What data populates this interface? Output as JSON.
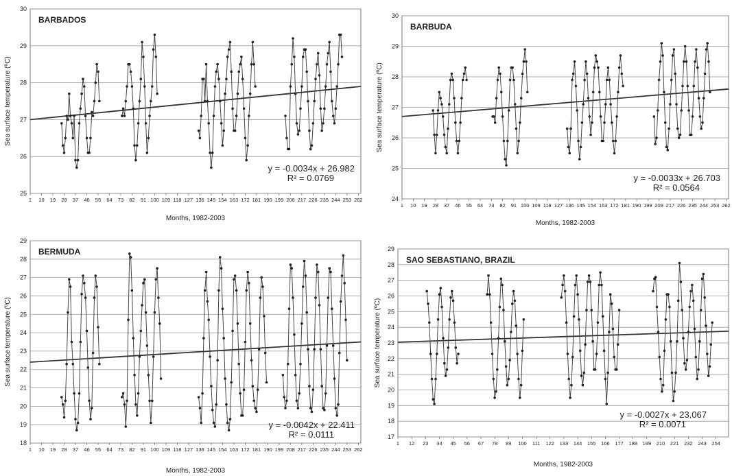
{
  "chart_data": [
    {
      "type": "line",
      "panel_label": "BARBADOS",
      "xlabel": "Months, 1982-2003",
      "ylabel": "Sea surface temperature (ºC)",
      "xticks": [
        "1",
        "10",
        "19",
        "28",
        "37",
        "46",
        "55",
        "64",
        "73",
        "82",
        "91",
        "100",
        "109",
        "118",
        "127",
        "136",
        "145",
        "154",
        "163",
        "172",
        "181",
        "190",
        "199",
        "208",
        "217",
        "226",
        "235",
        "244",
        "253",
        "262"
      ],
      "xlim": [
        1,
        264
      ],
      "ylim": [
        25,
        30
      ],
      "yticks": [
        25,
        26,
        27,
        28,
        29,
        30
      ],
      "grid": "horizontal",
      "equation": "y = -0.0034x + 26.982",
      "r2": "R² = 0.0769",
      "trend": {
        "y_start": 27.0,
        "y_end": 27.9
      },
      "series": [
        {
          "segments": [
            {
              "x_start": 26,
              "values": [
                26.9,
                26.3,
                26.1,
                26.5,
                27.1,
                27.0,
                27.7,
                27.1,
                26.9,
                26.5,
                27.1,
                25.9,
                25.7,
                25.9,
                26.9,
                27.3,
                27.7,
                28.1,
                27.9,
                27.1,
                26.5,
                26.1,
                26.1,
                26.5,
                27.2,
                27.1,
                27.5,
                28.0,
                28.5,
                28.3,
                27.5
              ]
            },
            {
              "x_start": 74,
              "values": [
                27.1,
                27.3,
                27.1,
                27.5,
                27.9,
                28.5,
                28.5,
                28.3,
                27.9,
                27.3,
                26.3,
                25.9,
                26.3,
                26.9,
                27.5,
                28.1,
                29.1,
                28.7,
                27.9,
                26.9,
                26.1,
                26.5,
                27.1,
                27.5,
                27.9,
                28.9,
                29.3,
                28.7,
                27.7
              ]
            },
            {
              "x_start": 135,
              "values": [
                26.7,
                26.5,
                27.1,
                28.1,
                28.1,
                27.5,
                28.5,
                27.5,
                26.9,
                26.1,
                25.7,
                26.1,
                27.1,
                27.9,
                28.3,
                28.5,
                28.1,
                27.5,
                26.9,
                26.3,
                26.7,
                27.7,
                28.1,
                28.7,
                28.9,
                29.1,
                28.3,
                27.3,
                26.7,
                26.7,
                27.1,
                27.7,
                28.3,
                28.5,
                28.7,
                28.1,
                27.3,
                26.5,
                25.9,
                26.3,
                27.1,
                27.7,
                28.5,
                29.1,
                28.5,
                27.9
              ]
            },
            {
              "x_start": 204,
              "values": [
                27.1,
                26.5,
                26.2,
                26.2,
                27.9,
                28.5,
                29.2,
                28.7,
                27.7,
                26.9,
                26.6,
                26.7,
                27.3,
                27.9,
                28.7,
                28.9,
                28.9,
                28.3,
                27.5,
                26.7,
                26.2,
                26.3,
                26.9,
                27.5,
                28.1,
                28.5,
                28.8,
                28.2,
                27.3,
                26.7,
                26.9,
                27.3,
                27.9,
                28.5,
                28.8,
                29.1,
                28.3,
                27.5,
                27.1,
                26.9,
                27.3,
                27.9,
                28.5,
                29.3,
                29.3,
                28.7
              ]
            }
          ]
        }
      ]
    },
    {
      "type": "line",
      "panel_label": "BARBUDA",
      "xlabel": "Months, 1982-2003",
      "ylabel": "Sea surface temperature (ºC)",
      "xticks": [
        "1",
        "10",
        "19",
        "28",
        "37",
        "46",
        "55",
        "64",
        "73",
        "82",
        "91",
        "100",
        "109",
        "118",
        "127",
        "136",
        "145",
        "154",
        "163",
        "172",
        "181",
        "190",
        "199",
        "208",
        "217",
        "226",
        "235",
        "244",
        "253",
        "262"
      ],
      "xlim": [
        1,
        264
      ],
      "ylim": [
        24,
        30
      ],
      "yticks": [
        24,
        25,
        26,
        27,
        28,
        29,
        30
      ],
      "grid": "horizontal",
      "equation": "y = -0.0033x + 26.703",
      "r2": "R² = 0.0564",
      "trend": {
        "y_start": 26.7,
        "y_end": 27.6
      },
      "series": [
        {
          "segments": [
            {
              "x_start": 26,
              "values": [
                26.9,
                26.1,
                25.5,
                26.1,
                26.9,
                27.5,
                27.3,
                27.1,
                26.7,
                26.1,
                25.7,
                25.5,
                26.3,
                27.1,
                27.9,
                28.1,
                27.9,
                27.3,
                26.5,
                25.9,
                25.5,
                25.9,
                26.5,
                27.3,
                27.9,
                28.1,
                28.3,
                27.9
              ]
            },
            {
              "x_start": 74,
              "values": [
                26.7,
                26.7,
                26.5,
                27.3,
                27.9,
                28.3,
                28.1,
                27.5,
                26.7,
                25.9,
                25.3,
                25.1,
                25.9,
                26.9,
                27.9,
                28.3,
                28.3,
                27.9,
                27.1,
                26.3,
                25.5,
                25.9,
                26.5,
                27.3,
                28.1,
                28.5,
                28.9,
                28.5,
                27.5
              ]
            },
            {
              "x_start": 134,
              "values": [
                26.3,
                25.7,
                25.5,
                26.3,
                27.9,
                28.1,
                28.5,
                27.7,
                26.9,
                25.9,
                25.3,
                25.7,
                26.5,
                27.1,
                27.9,
                28.5,
                28.1,
                27.3,
                26.7,
                26.1,
                26.5,
                27.5,
                28.3,
                28.7,
                28.5,
                28.3,
                27.5,
                26.7,
                25.9,
                25.9,
                26.5,
                27.1,
                27.9,
                28.3,
                27.9,
                27.1,
                26.5,
                25.9,
                25.5,
                25.9,
                26.7,
                27.5,
                28.3,
                28.7,
                28.1,
                27.7
              ]
            },
            {
              "x_start": 204,
              "values": [
                26.7,
                25.8,
                26.0,
                26.9,
                27.9,
                28.5,
                29.1,
                28.7,
                27.5,
                26.5,
                25.7,
                25.6,
                26.3,
                27.1,
                27.9,
                28.7,
                28.9,
                28.1,
                27.1,
                26.3,
                26.0,
                26.1,
                26.9,
                27.7,
                28.5,
                29.0,
                28.5,
                27.7,
                26.9,
                26.1,
                26.1,
                26.7,
                27.7,
                28.5,
                28.9,
                28.3,
                27.3,
                26.7,
                26.3,
                26.5,
                27.3,
                28.1,
                28.9,
                29.1,
                28.5,
                27.5
              ]
            }
          ]
        }
      ]
    },
    {
      "type": "line",
      "panel_label": "BERMUDA",
      "xlabel": "Months, 1982-2003",
      "ylabel": "Sea surface temperature (ºC)",
      "xticks": [
        "1",
        "10",
        "19",
        "28",
        "37",
        "46",
        "55",
        "64",
        "73",
        "82",
        "91",
        "100",
        "109",
        "118",
        "127",
        "136",
        "145",
        "154",
        "163",
        "172",
        "181",
        "190",
        "199",
        "208",
        "217",
        "226",
        "235",
        "244",
        "253",
        "262"
      ],
      "xlim": [
        1,
        264
      ],
      "ylim": [
        18,
        29
      ],
      "yticks": [
        18,
        19,
        20,
        21,
        22,
        23,
        24,
        25,
        26,
        27,
        28,
        29
      ],
      "grid": "horizontal",
      "equation": "y = -0.0042x + 22.411",
      "r2": "R² = 0.0111",
      "trend": {
        "y_start": 22.4,
        "y_end": 23.5
      },
      "series": [
        {
          "segments": [
            {
              "x_start": 26,
              "values": [
                20.5,
                20.1,
                19.4,
                20.3,
                22.3,
                25.1,
                26.9,
                26.5,
                23.5,
                22.3,
                20.7,
                19.3,
                18.7,
                19.1,
                20.7,
                23.5,
                26.1,
                27.1,
                26.7,
                25.9,
                24.1,
                22.1,
                20.3,
                19.3,
                19.9,
                22.9,
                25.9,
                27.1,
                26.5,
                24.3,
                22.3
              ]
            },
            {
              "x_start": 74,
              "values": [
                20.5,
                20.7,
                20.1,
                18.9,
                20.3,
                24.7,
                28.3,
                28.1,
                26.3,
                23.7,
                21.7,
                20.1,
                19.5,
                20.7,
                22.7,
                24.1,
                25.5,
                26.7,
                26.9,
                25.1,
                23.3,
                21.7,
                20.3,
                19.1,
                20.3,
                22.7,
                25.1,
                26.9,
                27.5,
                25.9,
                24.5,
                21.5
              ]
            },
            {
              "x_start": 135,
              "values": [
                20.5,
                19.9,
                19.1,
                20.7,
                23.7,
                26.3,
                27.3,
                25.7,
                24.7,
                22.7,
                21.1,
                19.8,
                19.1,
                18.9,
                20.1,
                22.5,
                26.3,
                28.1,
                27.5,
                25.3,
                23.7,
                21.5,
                20.1,
                19.1,
                18.7,
                19.3,
                21.3,
                24.1,
                26.9,
                27.1,
                26.3,
                24.5,
                22.3,
                20.7,
                19.5,
                19.5,
                20.9,
                23.5,
                26.3,
                27.3,
                26.7,
                24.5,
                22.5,
                21.1,
                20.3,
                19.9,
                19.7,
                20.9,
                23.1,
                25.9,
                27.0,
                26.5,
                24.9,
                22.9,
                21.3
              ]
            },
            {
              "x_start": 202,
              "values": [
                21.7,
                20.5,
                19.9,
                20.3,
                22.3,
                25.3,
                27.7,
                27.5,
                25.9,
                23.9,
                21.7,
                20.3,
                19.9,
                20.7,
                22.3,
                24.5,
                26.5,
                27.9,
                27.1,
                25.1,
                23.1,
                21.1,
                19.9,
                19.7,
                20.9,
                23.1,
                25.9,
                27.7,
                27.3,
                25.5,
                23.1,
                21.1,
                19.9,
                19.8,
                20.7,
                23.3,
                25.9,
                27.5,
                27.3,
                25.3,
                23.3,
                21.5,
                19.9,
                19.5,
                20.1,
                22.9,
                25.7,
                27.1,
                28.2,
                26.7,
                24.7,
                22.5
              ]
            }
          ]
        }
      ]
    },
    {
      "type": "line",
      "panel_label": "SAO SEBASTIANO, BRAZIL",
      "xlabel": "Months, 1982-2003",
      "ylabel": "Sea surface temperature (ºC)",
      "xticks": [
        "1",
        "12",
        "23",
        "34",
        "45",
        "56",
        "67",
        "78",
        "89",
        "100",
        "111",
        "122",
        "133",
        "144",
        "155",
        "166",
        "177",
        "188",
        "199",
        "210",
        "221",
        "232",
        "243",
        "254"
      ],
      "xlim": [
        1,
        264
      ],
      "ylim": [
        17,
        29
      ],
      "yticks": [
        17,
        18,
        19,
        20,
        21,
        22,
        23,
        24,
        25,
        26,
        27,
        28,
        29
      ],
      "grid": "horizontal",
      "equation": "y = -0.0027x + 23.067",
      "r2": "R² = 0.0071",
      "trend": {
        "y_start": 23.05,
        "y_end": 23.75
      },
      "series": [
        {
          "segments": [
            {
              "x_start": 24,
              "values": [
                26.3,
                25.5,
                24.3,
                22.3,
                20.7,
                19.4,
                19.1,
                20.7,
                22.3,
                24.5,
                26.1,
                26.5,
                25.3,
                23.3,
                21.7,
                20.9,
                21.3,
                22.7,
                24.5,
                25.9,
                26.3,
                25.7,
                24.3,
                22.7,
                21.7,
                22.3
              ]
            },
            {
              "x_start": 72,
              "values": [
                26.1,
                27.3,
                26.1,
                24.3,
                22.3,
                20.7,
                19.5,
                19.9,
                21.3,
                23.3,
                25.3,
                27.1,
                26.7,
                25.1,
                23.1,
                21.5,
                20.3,
                20.7,
                21.9,
                23.7,
                25.5,
                26.3,
                25.7,
                24.1,
                22.3,
                20.7,
                19.5,
                20.3,
                22.5,
                24.5
              ]
            },
            {
              "x_start": 131,
              "values": [
                25.9,
                26.7,
                27.3,
                26.3,
                24.3,
                22.3,
                20.7,
                19.5,
                20.3,
                22.1,
                24.7,
                26.7,
                27.3,
                26.1,
                24.5,
                22.5,
                20.9,
                20.3,
                21.1,
                22.9,
                25.1,
                26.9,
                27.3,
                26.9,
                25.1,
                23.1,
                21.3,
                21.3,
                22.3,
                24.3,
                26.7,
                27.5,
                26.7,
                24.7,
                22.5,
                20.7,
                19.1,
                21.1,
                23.7,
                26.1,
                25.5,
                23.9,
                22.1,
                21.3,
                21.3,
                22.9,
                25.1
              ]
            },
            {
              "x_start": 204,
              "values": [
                26.3,
                27.1,
                27.2,
                25.3,
                23.7,
                22.1,
                20.7,
                19.9,
                20.3,
                22.5,
                24.5,
                26.1,
                26.1,
                25.3,
                23.1,
                21.1,
                19.3,
                19.9,
                21.1,
                23.1,
                25.7,
                28.1,
                26.9,
                25.1,
                23.3,
                21.7,
                21.3,
                21.9,
                23.7,
                25.3,
                26.3,
                26.7,
                25.7,
                23.9,
                22.1,
                20.7,
                21.3,
                23.1,
                25.1,
                27.1,
                27.4,
                25.9,
                24.1,
                22.3,
                20.9,
                21.5,
                22.9,
                24.3
              ]
            }
          ]
        }
      ]
    }
  ]
}
